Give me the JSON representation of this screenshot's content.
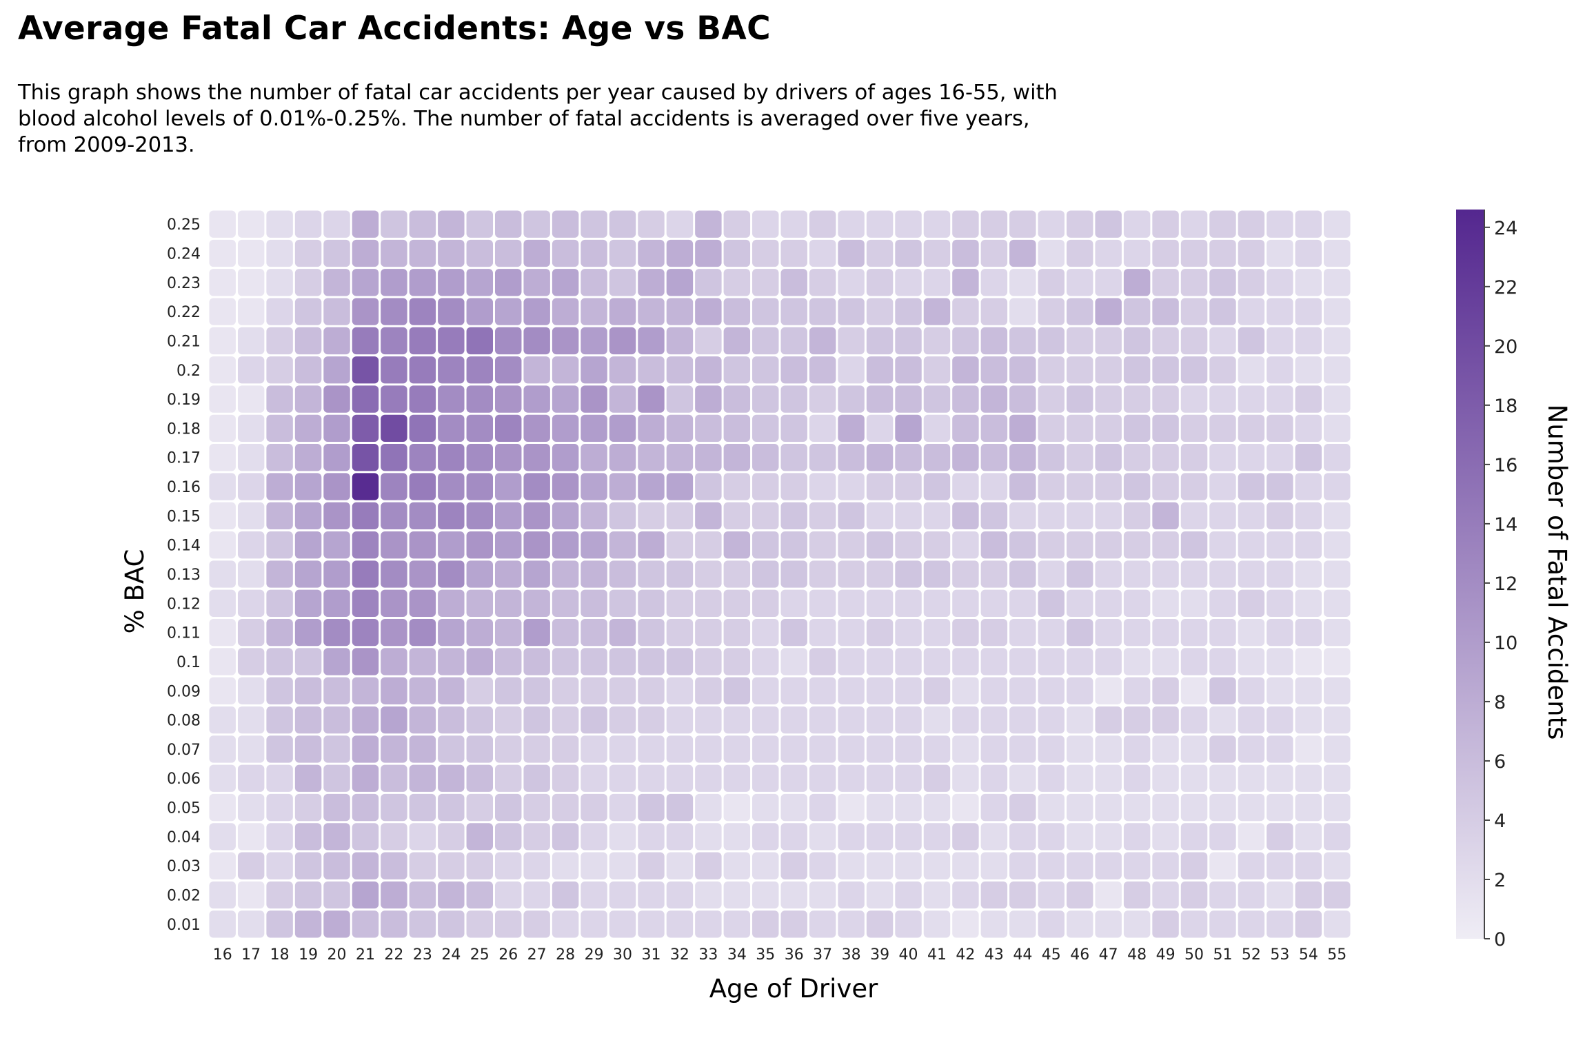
{
  "chart_data": {
    "type": "heatmap",
    "title": "Average Fatal Car Accidents: Age vs BAC",
    "subtitle": "This graph shows the number of fatal car accidents per year caused by drivers of ages 16-55, with\nblood alcohol levels of 0.01%-0.25%. The number of fatal accidents is averaged over five years,\nfrom 2009-2013.",
    "xlabel": "Age of Driver",
    "ylabel": "% BAC",
    "colorbar_label": "Number of Fatal Accidents",
    "x_categories": [
      "16",
      "17",
      "18",
      "19",
      "20",
      "21",
      "22",
      "23",
      "24",
      "25",
      "26",
      "27",
      "28",
      "29",
      "30",
      "31",
      "32",
      "33",
      "34",
      "35",
      "36",
      "37",
      "38",
      "39",
      "40",
      "41",
      "42",
      "43",
      "44",
      "45",
      "46",
      "47",
      "48",
      "49",
      "50",
      "51",
      "52",
      "53",
      "54",
      "55"
    ],
    "y_categories": [
      "0.01",
      "0.02",
      "0.03",
      "0.04",
      "0.05",
      "0.06",
      "0.07",
      "0.08",
      "0.09",
      "0.1",
      "0.11",
      "0.12",
      "0.13",
      "0.14",
      "0.15",
      "0.16",
      "0.17",
      "0.18",
      "0.19",
      "0.2",
      "0.21",
      "0.22",
      "0.23",
      "0.24",
      "0.25"
    ],
    "color_range": [
      0,
      24.6
    ],
    "colorbar_ticks": [
      "0",
      "2",
      "4",
      "6",
      "8",
      "10",
      "12",
      "14",
      "16",
      "18",
      "20",
      "22",
      "24"
    ],
    "colorscale": [
      "#efedf5",
      "#54278f"
    ],
    "values_note": "rows ordered from BAC 0.01 (first) to 0.25 (last); values estimated from color",
    "values": [
      [
        2,
        2,
        5,
        7,
        8,
        6,
        6,
        5,
        5,
        4,
        4,
        4,
        3,
        3,
        3,
        3,
        3,
        3,
        3,
        4,
        4,
        3,
        3,
        4,
        3,
        2,
        1,
        2,
        2,
        3,
        2,
        2,
        2,
        4,
        3,
        3,
        3,
        3,
        4,
        2
      ],
      [
        2,
        1,
        4,
        5,
        5,
        9,
        8,
        6,
        7,
        6,
        3,
        3,
        5,
        3,
        3,
        3,
        3,
        2,
        2,
        2,
        2,
        2,
        3,
        2,
        3,
        2,
        3,
        4,
        4,
        3,
        4,
        1,
        4,
        3,
        4,
        3,
        3,
        2,
        4,
        4
      ],
      [
        1,
        4,
        3,
        5,
        6,
        7,
        6,
        4,
        4,
        4,
        3,
        3,
        2,
        2,
        2,
        4,
        2,
        4,
        2,
        2,
        4,
        3,
        2,
        2,
        2,
        2,
        2,
        2,
        3,
        3,
        3,
        3,
        3,
        3,
        4,
        1,
        3,
        3,
        3,
        2
      ],
      [
        2,
        1,
        3,
        6,
        7,
        5,
        4,
        3,
        4,
        7,
        5,
        4,
        5,
        3,
        2,
        3,
        3,
        2,
        2,
        3,
        3,
        2,
        3,
        3,
        3,
        3,
        4,
        2,
        3,
        3,
        2,
        2,
        3,
        2,
        3,
        3,
        1,
        4,
        2,
        3
      ],
      [
        1,
        2,
        3,
        4,
        6,
        6,
        5,
        5,
        5,
        4,
        5,
        4,
        4,
        4,
        3,
        5,
        5,
        2,
        1,
        2,
        2,
        3,
        1,
        2,
        2,
        2,
        1,
        3,
        4,
        2,
        2,
        2,
        2,
        2,
        2,
        2,
        2,
        2,
        2,
        2
      ],
      [
        2,
        3,
        3,
        7,
        5,
        8,
        6,
        7,
        7,
        6,
        4,
        5,
        4,
        3,
        3,
        3,
        3,
        3,
        3,
        3,
        3,
        3,
        3,
        3,
        3,
        4,
        2,
        3,
        2,
        3,
        2,
        2,
        3,
        2,
        2,
        2,
        2,
        2,
        2,
        2
      ],
      [
        2,
        2,
        5,
        6,
        5,
        8,
        7,
        7,
        5,
        5,
        4,
        4,
        4,
        3,
        3,
        3,
        3,
        3,
        3,
        3,
        3,
        3,
        3,
        3,
        3,
        3,
        2,
        3,
        3,
        3,
        2,
        2,
        3,
        2,
        2,
        4,
        3,
        3,
        1,
        2
      ],
      [
        2,
        2,
        5,
        6,
        6,
        8,
        9,
        7,
        6,
        5,
        4,
        5,
        4,
        5,
        4,
        4,
        3,
        3,
        3,
        3,
        3,
        3,
        3,
        3,
        3,
        2,
        3,
        3,
        3,
        3,
        2,
        4,
        4,
        4,
        3,
        2,
        3,
        3,
        2,
        2
      ],
      [
        1,
        2,
        5,
        6,
        6,
        7,
        8,
        7,
        7,
        4,
        5,
        5,
        4,
        4,
        4,
        4,
        3,
        4,
        5,
        3,
        3,
        3,
        3,
        3,
        3,
        4,
        2,
        3,
        3,
        3,
        3,
        1,
        3,
        4,
        1,
        5,
        3,
        2,
        2,
        2
      ],
      [
        1,
        4,
        5,
        5,
        9,
        11,
        8,
        7,
        7,
        8,
        6,
        6,
        5,
        5,
        5,
        5,
        5,
        4,
        4,
        3,
        2,
        4,
        3,
        3,
        3,
        3,
        3,
        3,
        3,
        3,
        3,
        3,
        2,
        2,
        3,
        3,
        2,
        2,
        1,
        1
      ],
      [
        1,
        4,
        7,
        10,
        12,
        13,
        11,
        12,
        9,
        8,
        7,
        10,
        6,
        6,
        7,
        5,
        4,
        4,
        4,
        3,
        5,
        3,
        3,
        4,
        3,
        3,
        4,
        4,
        3,
        3,
        5,
        3,
        3,
        3,
        3,
        3,
        2,
        3,
        3,
        2
      ],
      [
        2,
        3,
        5,
        9,
        10,
        13,
        11,
        11,
        8,
        7,
        7,
        7,
        6,
        6,
        5,
        5,
        4,
        4,
        4,
        4,
        3,
        3,
        3,
        3,
        3,
        3,
        3,
        3,
        3,
        5,
        3,
        3,
        3,
        2,
        2,
        3,
        4,
        3,
        2,
        2
      ],
      [
        2,
        2,
        7,
        9,
        10,
        14,
        12,
        11,
        12,
        9,
        8,
        9,
        7,
        7,
        6,
        5,
        5,
        4,
        4,
        5,
        5,
        4,
        4,
        4,
        5,
        5,
        4,
        4,
        5,
        3,
        5,
        3,
        3,
        3,
        3,
        3,
        3,
        3,
        2,
        2
      ],
      [
        1,
        3,
        5,
        9,
        9,
        13,
        11,
        11,
        10,
        11,
        10,
        11,
        10,
        9,
        7,
        8,
        4,
        4,
        7,
        5,
        5,
        4,
        4,
        5,
        4,
        4,
        3,
        6,
        5,
        4,
        4,
        4,
        4,
        4,
        5,
        3,
        3,
        3,
        3,
        2
      ],
      [
        1,
        2,
        7,
        9,
        11,
        14,
        12,
        12,
        13,
        12,
        10,
        11,
        9,
        7,
        5,
        4,
        4,
        7,
        4,
        4,
        5,
        4,
        5,
        3,
        3,
        3,
        6,
        5,
        3,
        3,
        3,
        3,
        4,
        7,
        3,
        3,
        3,
        4,
        3,
        2
      ],
      [
        2,
        3,
        8,
        9,
        11,
        24,
        13,
        14,
        12,
        12,
        10,
        12,
        11,
        9,
        8,
        9,
        9,
        5,
        4,
        4,
        4,
        3,
        3,
        4,
        4,
        5,
        3,
        3,
        6,
        4,
        4,
        4,
        5,
        4,
        4,
        3,
        5,
        5,
        3,
        3
      ],
      [
        1,
        2,
        6,
        8,
        10,
        19,
        15,
        13,
        13,
        12,
        11,
        11,
        10,
        8,
        8,
        7,
        7,
        7,
        7,
        6,
        5,
        5,
        6,
        7,
        6,
        6,
        7,
        6,
        7,
        5,
        4,
        5,
        4,
        4,
        4,
        3,
        3,
        3,
        5,
        3
      ],
      [
        1,
        2,
        6,
        8,
        10,
        18,
        20,
        15,
        12,
        12,
        13,
        11,
        10,
        10,
        10,
        8,
        7,
        6,
        6,
        5,
        5,
        3,
        8,
        3,
        9,
        3,
        6,
        6,
        8,
        4,
        4,
        4,
        5,
        5,
        4,
        4,
        4,
        4,
        3,
        2
      ],
      [
        1,
        1,
        6,
        7,
        11,
        16,
        14,
        14,
        12,
        12,
        11,
        10,
        9,
        11,
        7,
        11,
        5,
        8,
        6,
        5,
        5,
        4,
        5,
        6,
        6,
        5,
        6,
        7,
        6,
        4,
        5,
        4,
        4,
        4,
        3,
        3,
        3,
        3,
        4,
        2
      ],
      [
        1,
        3,
        4,
        6,
        9,
        19,
        14,
        14,
        13,
        13,
        12,
        7,
        7,
        9,
        7,
        6,
        6,
        7,
        5,
        5,
        6,
        6,
        3,
        6,
        6,
        4,
        7,
        6,
        6,
        4,
        4,
        4,
        5,
        5,
        5,
        4,
        2,
        3,
        2,
        2
      ],
      [
        1,
        2,
        4,
        6,
        8,
        14,
        13,
        14,
        14,
        15,
        12,
        12,
        11,
        10,
        11,
        10,
        7,
        4,
        7,
        5,
        5,
        7,
        4,
        5,
        5,
        4,
        5,
        6,
        5,
        5,
        4,
        4,
        5,
        4,
        4,
        3,
        5,
        3,
        3,
        2
      ],
      [
        1,
        1,
        3,
        5,
        6,
        11,
        12,
        13,
        12,
        10,
        9,
        10,
        8,
        7,
        8,
        7,
        7,
        8,
        6,
        5,
        5,
        5,
        5,
        4,
        5,
        7,
        4,
        4,
        2,
        4,
        5,
        8,
        5,
        6,
        4,
        5,
        3,
        3,
        3,
        2
      ],
      [
        1,
        1,
        2,
        4,
        7,
        9,
        10,
        10,
        10,
        9,
        10,
        8,
        9,
        6,
        5,
        8,
        9,
        5,
        4,
        4,
        6,
        4,
        3,
        4,
        3,
        3,
        7,
        3,
        2,
        4,
        3,
        3,
        8,
        4,
        4,
        5,
        4,
        3,
        2,
        2
      ],
      [
        1,
        1,
        2,
        4,
        5,
        8,
        7,
        7,
        7,
        6,
        6,
        8,
        6,
        6,
        5,
        7,
        8,
        8,
        5,
        4,
        4,
        3,
        6,
        4,
        5,
        4,
        6,
        4,
        7,
        2,
        4,
        3,
        3,
        4,
        4,
        4,
        4,
        2,
        3,
        2
      ],
      [
        1,
        1,
        2,
        3,
        3,
        8,
        5,
        6,
        7,
        5,
        6,
        5,
        6,
        5,
        5,
        4,
        3,
        7,
        4,
        3,
        3,
        4,
        3,
        3,
        3,
        3,
        4,
        4,
        4,
        3,
        4,
        5,
        3,
        4,
        3,
        4,
        4,
        3,
        3,
        2
      ]
    ]
  }
}
